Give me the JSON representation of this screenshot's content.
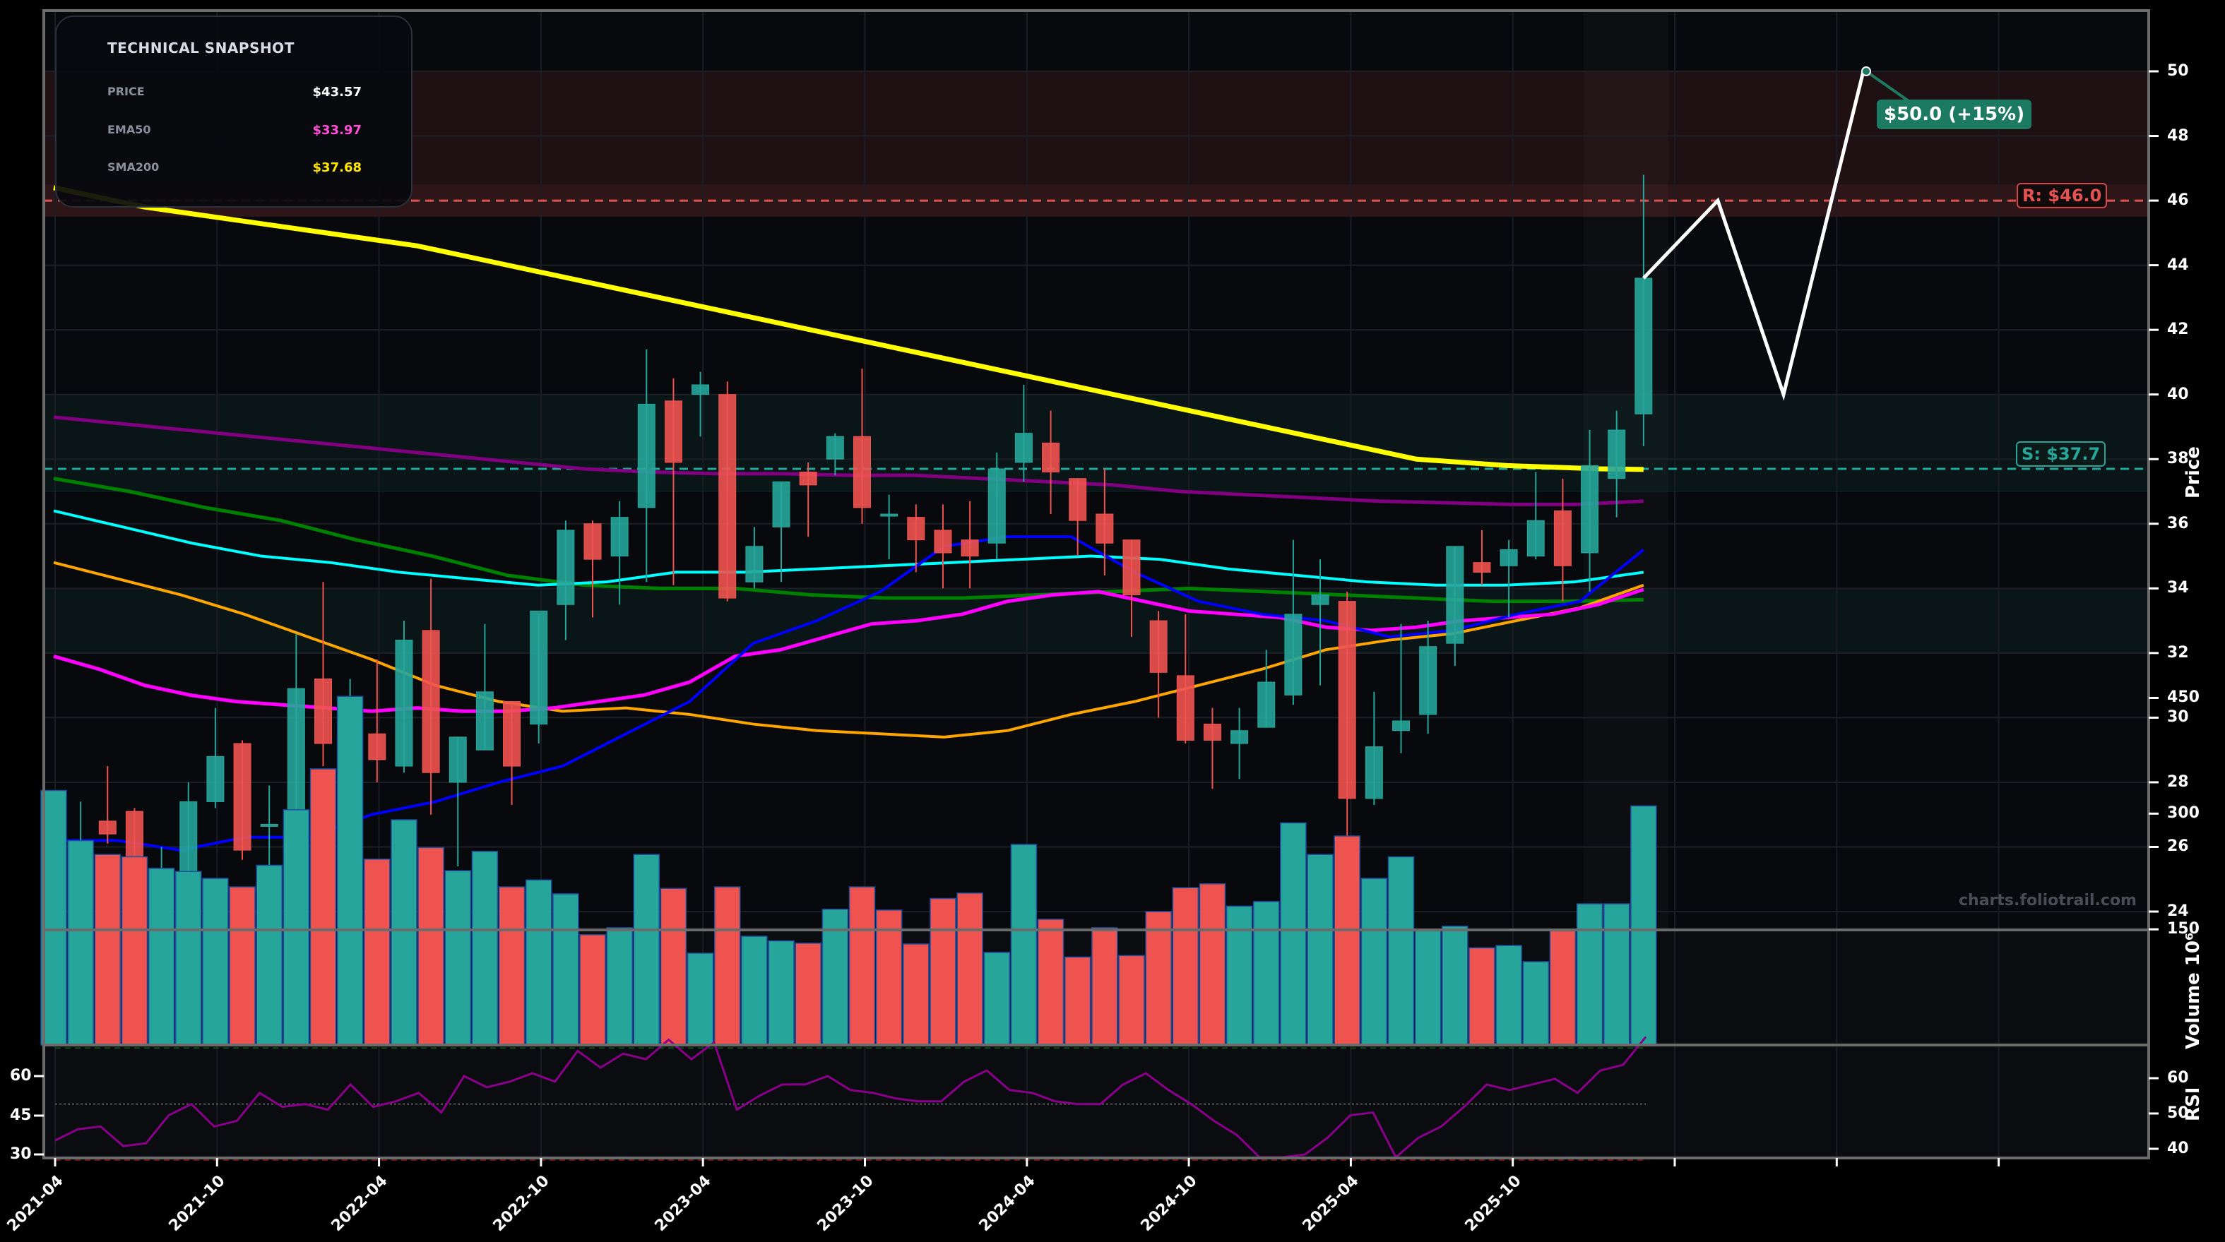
{
  "snapshot": {
    "title": "TECHNICAL SNAPSHOT",
    "rows": [
      {
        "label": "PRICE",
        "value": "$43.57",
        "color": "#ffffff"
      },
      {
        "label": "EMA50",
        "value": "$33.97",
        "color": "#ff4fd8"
      },
      {
        "label": "SMA200",
        "value": "$37.68",
        "color": "#ffe600"
      }
    ]
  },
  "annotations": {
    "target_label": "$50.0 (+15%)",
    "resistance_label": "R: $46.0",
    "support_label": "S: $37.7",
    "watermark": "charts.foliotrail.com"
  },
  "axes": {
    "price_title": "Price",
    "volume_title": "Volume  10⁶",
    "rsi_title": "RSI",
    "price_ticks": [
      24,
      26,
      28,
      30,
      32,
      34,
      36,
      38,
      40,
      42,
      44,
      46,
      48,
      50
    ],
    "volume_ticks": [
      150,
      300,
      450
    ],
    "rsi_ticks_left": [
      30,
      45,
      60
    ],
    "rsi_ticks_right": [
      40,
      50,
      60
    ],
    "x_ticks": [
      "2021-04",
      "2021-10",
      "2022-04",
      "2022-10",
      "2023-04",
      "2023-10",
      "2024-04",
      "2024-10",
      "2025-04",
      "2025-10"
    ]
  },
  "colors": {
    "up": "#26a69a",
    "down": "#ef5350",
    "sma200": "#ffff00",
    "purple_ma": "#800080",
    "green_ma": "#008000",
    "cyan_ma": "#00ffff",
    "orange_ma": "#ffa500",
    "magenta_ma": "#ff00ff",
    "blue_ma": "#0000ff",
    "rsi": "#8b008b",
    "resistance": "#d9534f",
    "support": "#26a69a",
    "projection": "#ffffff"
  },
  "chart_data": {
    "type": "candlestick",
    "title": "",
    "xlabel": "",
    "ylabel": "Price",
    "ylim": [
      23,
      51
    ],
    "timeframe": "monthly",
    "candles": [
      {
        "d": "2021-04",
        "o": 24.5,
        "h": 25.9,
        "l": 24.1,
        "c": 25.2
      },
      {
        "d": "2021-05",
        "o": 25.2,
        "h": 27.4,
        "l": 25.4,
        "c": 26.0
      },
      {
        "d": "2021-06",
        "o": 26.8,
        "h": 28.5,
        "l": 26.1,
        "c": 26.4
      },
      {
        "d": "2021-07",
        "o": 27.1,
        "h": 27.2,
        "l": 22.7,
        "c": 24.2
      },
      {
        "d": "2021-08",
        "o": 24.3,
        "h": 26.0,
        "l": 23.4,
        "c": 24.4
      },
      {
        "d": "2021-09",
        "o": 24.6,
        "h": 28.0,
        "l": 24.2,
        "c": 27.4
      },
      {
        "d": "2021-10",
        "o": 27.4,
        "h": 30.3,
        "l": 27.2,
        "c": 28.8
      },
      {
        "d": "2021-11",
        "o": 29.2,
        "h": 29.3,
        "l": 25.6,
        "c": 25.9
      },
      {
        "d": "2021-12",
        "o": 26.7,
        "h": 27.9,
        "l": 25.3,
        "c": 26.7
      },
      {
        "d": "2021-13",
        "o": 26.6,
        "h": 32.6,
        "l": 26.3,
        "c": 30.9
      },
      {
        "d": "2022-02",
        "o": 31.2,
        "h": 34.2,
        "l": 28.5,
        "c": 29.2
      },
      {
        "d": "2022-03",
        "o": 28.6,
        "h": 31.2,
        "l": 27.3,
        "c": 29.2
      },
      {
        "d": "2022-04",
        "o": 29.5,
        "h": 31.8,
        "l": 28.0,
        "c": 28.7
      },
      {
        "d": "2022-05",
        "o": 28.5,
        "h": 33.0,
        "l": 28.3,
        "c": 32.4
      },
      {
        "d": "2022-06",
        "o": 32.7,
        "h": 34.3,
        "l": 27.0,
        "c": 28.3
      },
      {
        "d": "2022-07",
        "o": 28.0,
        "h": 29.4,
        "l": 25.4,
        "c": 29.4
      },
      {
        "d": "2022-08",
        "o": 29.0,
        "h": 32.9,
        "l": 29.0,
        "c": 30.8
      },
      {
        "d": "2022-09",
        "o": 30.5,
        "h": 30.5,
        "l": 27.3,
        "c": 28.5
      },
      {
        "d": "2022-10",
        "o": 29.8,
        "h": 33.2,
        "l": 29.2,
        "c": 33.3
      },
      {
        "d": "2022-11",
        "o": 33.5,
        "h": 36.1,
        "l": 32.4,
        "c": 35.8
      },
      {
        "d": "2022-12",
        "o": 36.0,
        "h": 36.1,
        "l": 33.1,
        "c": 34.9
      },
      {
        "d": "2023-01",
        "o": 35.0,
        "h": 36.7,
        "l": 33.5,
        "c": 36.2
      },
      {
        "d": "2023-02",
        "o": 36.5,
        "h": 41.4,
        "l": 34.2,
        "c": 39.7
      },
      {
        "d": "2023-03",
        "o": 39.8,
        "h": 40.5,
        "l": 34.1,
        "c": 37.9
      },
      {
        "d": "2023-04",
        "o": 40.0,
        "h": 40.7,
        "l": 38.7,
        "c": 40.3
      },
      {
        "d": "2023-05",
        "o": 40.0,
        "h": 40.4,
        "l": 33.6,
        "c": 33.7
      },
      {
        "d": "2023-06",
        "o": 34.2,
        "h": 35.9,
        "l": 34.0,
        "c": 35.3
      },
      {
        "d": "2023-07",
        "o": 35.9,
        "h": 37.3,
        "l": 34.2,
        "c": 37.3
      },
      {
        "d": "2023-08",
        "o": 37.6,
        "h": 37.9,
        "l": 35.6,
        "c": 37.2
      },
      {
        "d": "2023-09",
        "o": 38.0,
        "h": 38.8,
        "l": 37.5,
        "c": 38.7
      },
      {
        "d": "2023-10",
        "o": 38.7,
        "h": 40.8,
        "l": 36.0,
        "c": 36.5
      },
      {
        "d": "2023-11",
        "o": 36.3,
        "h": 36.9,
        "l": 34.9,
        "c": 36.3
      },
      {
        "d": "2023-12",
        "o": 36.2,
        "h": 36.6,
        "l": 34.5,
        "c": 35.5
      },
      {
        "d": "2024-01",
        "o": 35.8,
        "h": 36.6,
        "l": 34.0,
        "c": 35.1
      },
      {
        "d": "2024-02",
        "o": 35.5,
        "h": 36.7,
        "l": 34.0,
        "c": 35.0
      },
      {
        "d": "2024-03",
        "o": 35.4,
        "h": 38.2,
        "l": 34.9,
        "c": 37.7
      },
      {
        "d": "2024-04",
        "o": 37.9,
        "h": 40.3,
        "l": 37.3,
        "c": 38.8
      },
      {
        "d": "2024-05",
        "o": 38.5,
        "h": 39.5,
        "l": 36.3,
        "c": 37.6
      },
      {
        "d": "2024-06",
        "o": 37.4,
        "h": 37.4,
        "l": 35.0,
        "c": 36.1
      },
      {
        "d": "2024-07",
        "o": 36.3,
        "h": 37.7,
        "l": 34.4,
        "c": 35.4
      },
      {
        "d": "2024-08",
        "o": 35.5,
        "h": 35.5,
        "l": 32.5,
        "c": 33.8
      },
      {
        "d": "2024-09",
        "o": 33.0,
        "h": 33.3,
        "l": 30.0,
        "c": 31.4
      },
      {
        "d": "2024-10",
        "o": 31.3,
        "h": 33.2,
        "l": 29.2,
        "c": 29.3
      },
      {
        "d": "2024-11",
        "o": 29.8,
        "h": 30.3,
        "l": 27.8,
        "c": 29.3
      },
      {
        "d": "2024-12",
        "o": 29.2,
        "h": 30.3,
        "l": 28.1,
        "c": 29.6
      },
      {
        "d": "2025-01",
        "o": 29.7,
        "h": 32.1,
        "l": 29.7,
        "c": 31.1
      },
      {
        "d": "2025-02",
        "o": 30.7,
        "h": 35.5,
        "l": 30.4,
        "c": 33.2
      },
      {
        "d": "2025-03",
        "o": 33.5,
        "h": 34.9,
        "l": 31.0,
        "c": 33.8
      },
      {
        "d": "2025-04",
        "o": 33.6,
        "h": 33.9,
        "l": 25.2,
        "c": 27.5
      },
      {
        "d": "2025-05",
        "o": 27.5,
        "h": 30.8,
        "l": 27.3,
        "c": 29.1
      },
      {
        "d": "2025-06",
        "o": 29.6,
        "h": 32.9,
        "l": 28.9,
        "c": 29.9
      },
      {
        "d": "2025-07",
        "o": 30.1,
        "h": 33.0,
        "l": 29.5,
        "c": 32.2
      },
      {
        "d": "2025-08",
        "o": 32.3,
        "h": 35.3,
        "l": 31.6,
        "c": 35.3
      },
      {
        "d": "2025-09",
        "o": 34.8,
        "h": 35.8,
        "l": 34.1,
        "c": 34.5
      },
      {
        "d": "2025-10",
        "o": 34.7,
        "h": 35.5,
        "l": 33.1,
        "c": 35.2
      },
      {
        "d": "2025-11",
        "o": 35.0,
        "h": 37.6,
        "l": 34.9,
        "c": 36.1
      },
      {
        "d": "2025-12",
        "o": 36.4,
        "h": 37.4,
        "l": 33.6,
        "c": 34.7
      }
    ],
    "extra_candles": [
      {
        "d": "2026-01",
        "o": 35.1,
        "h": 38.9,
        "l": 33.9,
        "c": 37.8
      },
      {
        "d": "2026-02",
        "o": 37.4,
        "h": 39.5,
        "l": 36.2,
        "c": 38.9
      },
      {
        "d": "2026-03",
        "o": 39.4,
        "h": 46.8,
        "l": 38.4,
        "c": 43.6
      }
    ],
    "volume": [
      330,
      265,
      247,
      244,
      229,
      225,
      216,
      205,
      233,
      305,
      358,
      452,
      241,
      292,
      256,
      226,
      251,
      205,
      214,
      196,
      143,
      152,
      247,
      203,
      119,
      205,
      141,
      135,
      132,
      176,
      205,
      175,
      131,
      190,
      197,
      120,
      260,
      163,
      114,
      152,
      116,
      173,
      204,
      209,
      180,
      186,
      288,
      247,
      271,
      216,
      244,
      148,
      154,
      126,
      129,
      108,
      148,
      183,
      183,
      310
    ],
    "volume_colors": [
      "up",
      "up",
      "down",
      "down",
      "up",
      "up",
      "up",
      "down",
      "up",
      "up",
      "down",
      "up",
      "down",
      "up",
      "down",
      "up",
      "up",
      "down",
      "up",
      "up",
      "down",
      "up",
      "up",
      "down",
      "up",
      "down",
      "up",
      "up",
      "down",
      "up",
      "down",
      "down",
      "down",
      "down",
      "down",
      "up",
      "up",
      "down",
      "down",
      "down",
      "down",
      "down",
      "down",
      "down",
      "up",
      "up",
      "up",
      "up",
      "down",
      "up",
      "up",
      "up",
      "up",
      "down",
      "up",
      "up",
      "down",
      "up",
      "up",
      "up"
    ],
    "series": [
      {
        "name": "SMA200",
        "color": "#ffff00",
        "values": [
          46.4,
          46.1,
          45.8,
          45.6,
          45.4,
          45.2,
          45.0,
          44.8,
          44.6,
          44.3,
          44.0,
          43.7,
          43.4,
          43.1,
          42.8,
          42.5,
          42.2,
          41.9,
          41.6,
          41.3,
          41.0,
          40.7,
          40.4,
          40.1,
          39.8,
          39.5,
          39.2,
          38.9,
          38.6,
          38.3,
          38.0,
          37.9,
          37.8,
          37.75,
          37.7,
          37.68
        ]
      },
      {
        "name": "EMA50",
        "color": "#ff00ff",
        "values": [
          31.9,
          31.5,
          31.0,
          30.7,
          30.5,
          30.4,
          30.3,
          30.2,
          30.3,
          30.2,
          30.2,
          30.3,
          30.5,
          30.7,
          31.1,
          31.9,
          32.1,
          32.5,
          32.9,
          33.0,
          33.2,
          33.6,
          33.8,
          33.9,
          33.6,
          33.3,
          33.2,
          33.1,
          32.8,
          32.7,
          32.8,
          33.0,
          33.1,
          33.2,
          33.5,
          33.97
        ]
      }
    ],
    "projection": {
      "points": [
        43.6,
        46.0,
        40.0,
        50.0
      ],
      "target": 50.0,
      "target_pct": "+15%"
    },
    "resistance": {
      "level": 46.0,
      "zone": [
        45.5,
        50.0
      ]
    },
    "support": {
      "level": 37.7,
      "zones": [
        [
          37.0,
          40.0
        ],
        [
          32.0,
          34.0
        ]
      ]
    },
    "rsi": [
      37,
      41,
      42,
      35,
      36,
      46,
      50,
      42,
      44,
      54,
      49,
      50,
      48,
      57,
      49,
      51,
      54,
      47,
      60,
      56,
      58,
      61,
      58,
      69,
      63,
      68,
      66,
      73,
      66,
      72,
      48,
      53,
      57,
      57,
      60,
      55,
      54,
      52,
      51,
      51,
      58,
      62,
      55,
      54,
      51,
      50,
      50,
      57,
      61,
      55,
      50,
      44,
      39,
      31,
      31,
      32,
      38,
      46,
      47,
      31,
      38,
      42,
      49,
      57,
      55,
      57,
      59,
      54,
      62,
      64,
      74
    ],
    "rsi_levels": {
      "overbought": 70,
      "mid": 50,
      "oversold": 30
    }
  }
}
